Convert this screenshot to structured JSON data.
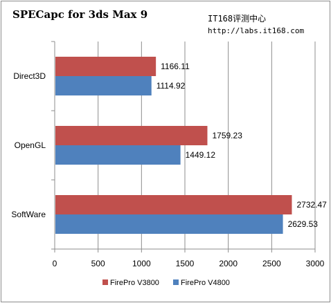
{
  "header": {
    "title": "SPECapc for 3ds Max 9",
    "watermark_name": "IT168评测中心",
    "watermark_url": "http://labs.it168.com"
  },
  "colors": {
    "series_1": "#c0504d",
    "series_2": "#4f81bd"
  },
  "chart_data": {
    "type": "bar",
    "orientation": "horizontal",
    "title": "SPECapc for 3ds Max 9",
    "categories": [
      "Direct3D",
      "OpenGL",
      "SoftWare"
    ],
    "series": [
      {
        "name": "FirePro V3800",
        "values": [
          1166.11,
          1759.23,
          2732.47
        ],
        "labels": [
          "1166.11",
          "1759.23",
          "2732.47"
        ]
      },
      {
        "name": "FirePro V4800",
        "values": [
          1114.92,
          1449.12,
          2629.53
        ],
        "labels": [
          "1114.92",
          "1449.12",
          "2629.53"
        ]
      }
    ],
    "xlim": [
      0,
      3000
    ],
    "xticks": [
      0,
      500,
      1000,
      1500,
      2000,
      2500,
      3000
    ],
    "xtick_labels": [
      "0",
      "500",
      "1000",
      "1500",
      "2000",
      "2500",
      "3000"
    ],
    "xlabel": "",
    "ylabel": "",
    "grid": true,
    "legend_position": "bottom"
  }
}
